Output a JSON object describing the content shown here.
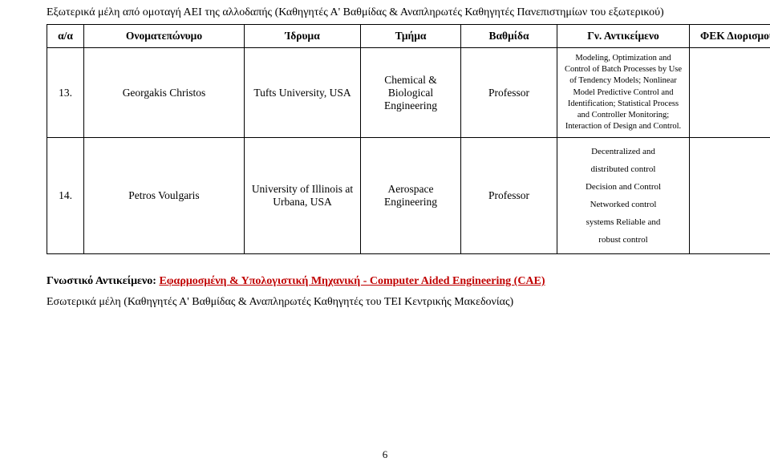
{
  "sectionTitle": "Εξωτερικά μέλη από ομοταγή ΑΕΙ της αλλοδαπής (Καθηγητές Α' Βαθμίδας & Αναπληρωτές Καθηγητές Πανεπιστημίων του εξωτερικού)",
  "headers": {
    "aa": "α/α",
    "name": "Ονοματεπώνυμο",
    "inst": "Ίδρυμα",
    "dept": "Τμήμα",
    "rank": "Βαθμίδα",
    "subj": "Γν. Αντικείμενο",
    "fek": "ΦΕΚ Διορισμού"
  },
  "row1": {
    "aa": "13.",
    "name": "Georgakis Christos",
    "inst": "Tufts University, USA",
    "dept": "Chemical & Biological Engineering",
    "rank": "Professor",
    "subj": "Modeling, Optimization and Control of Batch Processes by Use of Tendency Models; Nonlinear Model Predictive Control and Identification; Statistical Process and Controller Monitoring; Interaction of Design and Control.",
    "fek": ""
  },
  "row2": {
    "aa": "14.",
    "name": "Petros Voulgaris",
    "inst": "University of Illinois at Urbana, USA",
    "dept": "Aerospace Engineering",
    "rank": "Professor",
    "subjLines": {
      "l1": "Decentralized and",
      "l2": "distributed control",
      "l3": "Decision and Control",
      "l4": "Networked control",
      "l5": "systems Reliable and",
      "l6": "robust control"
    },
    "fek": ""
  },
  "gnLabel": "Γνωστικό Αντικείμενο: ",
  "gnValue": "Εφαρμοσμένη & Υπολογιστική Μηχανική - Computer Aided Engineering (CAE)",
  "innerMembers": "Εσωτερικά μέλη (Καθηγητές Α' Βαθμίδας & Αναπληρωτές Καθηγητές του ΤΕΙ Κεντρικής Μακεδονίας)",
  "pageNumber": "6"
}
